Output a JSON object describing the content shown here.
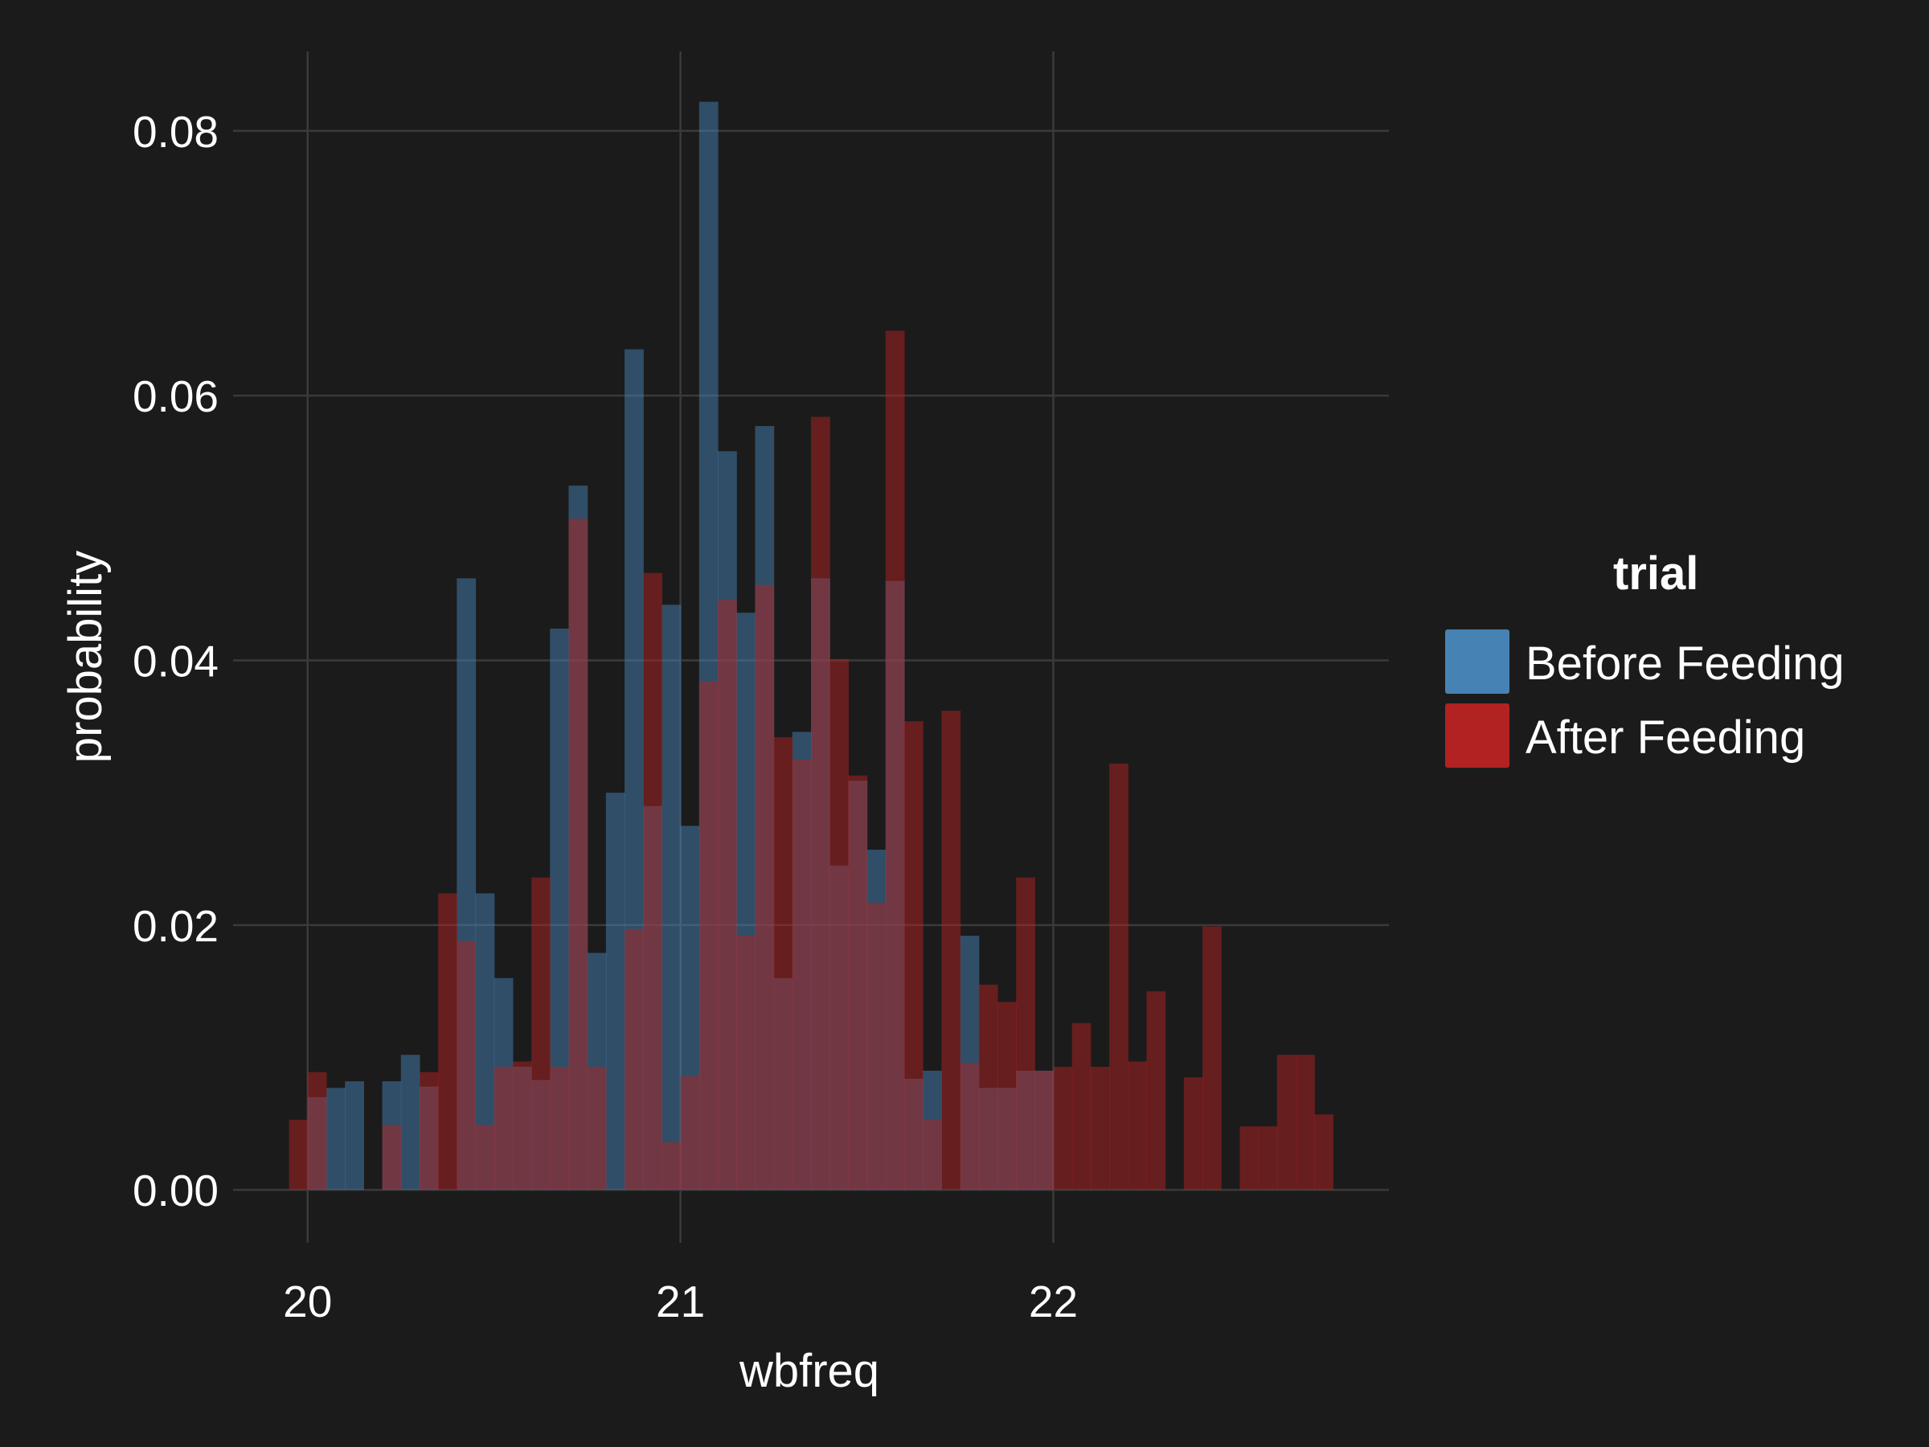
{
  "chart_data": {
    "type": "bar",
    "xlabel": "wbfreq",
    "ylabel": "probability",
    "xlim": [
      19.8,
      22.9
    ],
    "ylim": [
      -0.004,
      0.086
    ],
    "x_ticks": [
      20,
      21,
      22
    ],
    "x_tick_labels": [
      "20",
      "21",
      "22"
    ],
    "y_ticks": [
      0.0,
      0.02,
      0.04,
      0.06,
      0.08
    ],
    "y_tick_labels": [
      "0.00",
      "0.02",
      "0.04",
      "0.06",
      "0.08"
    ],
    "grid": true,
    "legend_position": "right",
    "legend_title": "trial",
    "bin_width": 0.05,
    "series": [
      {
        "name": "Before Feeding",
        "color": "#4682b4",
        "bins": [
          [
            20.0,
            0.007
          ],
          [
            20.05,
            0.0077
          ],
          [
            20.1,
            0.0082
          ],
          [
            20.2,
            0.0082
          ],
          [
            20.25,
            0.0102
          ],
          [
            20.3,
            0.0078
          ],
          [
            20.4,
            0.0462
          ],
          [
            20.45,
            0.0224
          ],
          [
            20.5,
            0.016
          ],
          [
            20.55,
            0.0093
          ],
          [
            20.6,
            0.0083
          ],
          [
            20.65,
            0.0424
          ],
          [
            20.7,
            0.0532
          ],
          [
            20.75,
            0.0179
          ],
          [
            20.8,
            0.03
          ],
          [
            20.85,
            0.0635
          ],
          [
            20.9,
            0.029
          ],
          [
            20.95,
            0.0442
          ],
          [
            21.0,
            0.0275
          ],
          [
            21.05,
            0.0822
          ],
          [
            21.1,
            0.0558
          ],
          [
            21.15,
            0.0436
          ],
          [
            21.2,
            0.0577
          ],
          [
            21.25,
            0.016
          ],
          [
            21.3,
            0.0346
          ],
          [
            21.35,
            0.0462
          ],
          [
            21.4,
            0.0245
          ],
          [
            21.45,
            0.0309
          ],
          [
            21.5,
            0.0257
          ],
          [
            21.55,
            0.046
          ],
          [
            21.6,
            0.0084
          ],
          [
            21.65,
            0.009
          ],
          [
            21.75,
            0.0192
          ],
          [
            21.8,
            0.0077
          ],
          [
            21.85,
            0.0077
          ],
          [
            21.9,
            0.009
          ],
          [
            21.95,
            0.009
          ]
        ]
      },
      {
        "name": "After Feeding",
        "color": "#b22222",
        "bins": [
          [
            19.95,
            0.0053
          ],
          [
            20.0,
            0.0089
          ],
          [
            20.2,
            0.0049
          ],
          [
            20.3,
            0.0089
          ],
          [
            20.35,
            0.0224
          ],
          [
            20.4,
            0.0188
          ],
          [
            20.45,
            0.0049
          ],
          [
            20.5,
            0.0093
          ],
          [
            20.55,
            0.0097
          ],
          [
            20.6,
            0.0236
          ],
          [
            20.65,
            0.0093
          ],
          [
            20.7,
            0.0507
          ],
          [
            20.75,
            0.0093
          ],
          [
            20.85,
            0.0197
          ],
          [
            20.9,
            0.0466
          ],
          [
            20.95,
            0.0036
          ],
          [
            21.0,
            0.0086
          ],
          [
            21.05,
            0.0384
          ],
          [
            21.1,
            0.0446
          ],
          [
            21.15,
            0.0192
          ],
          [
            21.2,
            0.0457
          ],
          [
            21.25,
            0.0342
          ],
          [
            21.3,
            0.0325
          ],
          [
            21.35,
            0.0584
          ],
          [
            21.4,
            0.0401
          ],
          [
            21.45,
            0.0313
          ],
          [
            21.5,
            0.0217
          ],
          [
            21.55,
            0.0649
          ],
          [
            21.6,
            0.0354
          ],
          [
            21.65,
            0.0053
          ],
          [
            21.7,
            0.0362
          ],
          [
            21.75,
            0.0096
          ],
          [
            21.8,
            0.0155
          ],
          [
            21.85,
            0.0142
          ],
          [
            21.9,
            0.0236
          ],
          [
            21.95,
            0.009
          ],
          [
            22.0,
            0.0093
          ],
          [
            22.05,
            0.0126
          ],
          [
            22.1,
            0.0093
          ],
          [
            22.15,
            0.0322
          ],
          [
            22.2,
            0.0097
          ],
          [
            22.25,
            0.015
          ],
          [
            22.35,
            0.0085
          ],
          [
            22.4,
            0.0199
          ],
          [
            22.5,
            0.0048
          ],
          [
            22.55,
            0.0048
          ],
          [
            22.6,
            0.0102
          ],
          [
            22.65,
            0.0102
          ],
          [
            22.7,
            0.0057
          ]
        ]
      }
    ]
  }
}
